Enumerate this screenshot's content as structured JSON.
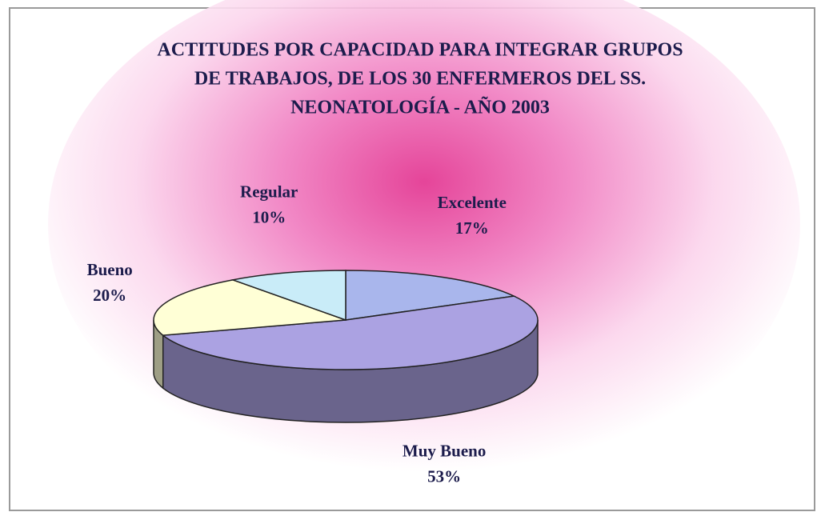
{
  "chart_data": {
    "type": "pie",
    "title": [
      "ACTITUDES POR CAPACIDAD PARA INTEGRAR GRUPOS",
      "DE TRABAJOS, DE LOS 30 ENFERMEROS DEL SS.",
      "NEONATOLOGÍA -  AÑO 2003"
    ],
    "categories": [
      "Excelente",
      "Muy Bueno",
      "Bueno",
      "Regular"
    ],
    "values": [
      17,
      53,
      20,
      10
    ],
    "value_labels": [
      "17%",
      "53%",
      "20%",
      "10%"
    ],
    "colors": [
      "#a9b6ec",
      "#aba2e2",
      "#ffffd6",
      "#c9ecf8"
    ]
  }
}
